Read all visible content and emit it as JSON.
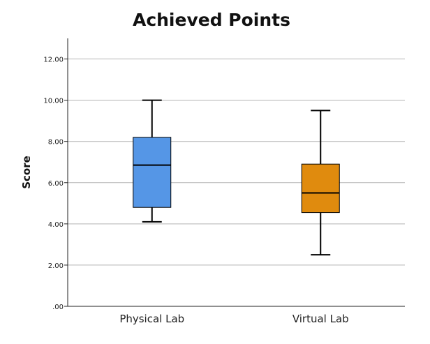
{
  "chart_data": {
    "type": "boxplot",
    "title": "Achieved Points",
    "xlabel": "",
    "ylabel": "Score",
    "ylim": [
      0,
      13.0
    ],
    "yticks": [
      0,
      2,
      4,
      6,
      8,
      10,
      12
    ],
    "ytick_labels": [
      ".00",
      "2.00",
      "4.00",
      "6.00",
      "8.00",
      "10.00",
      "12.00"
    ],
    "grid": true,
    "categories": [
      "Physical Lab",
      "Virtual Lab"
    ],
    "boxes": [
      {
        "category": "Physical Lab",
        "min": 4.1,
        "q1": 4.8,
        "median": 6.85,
        "q3": 8.2,
        "max": 10.0,
        "color": "#5596e6"
      },
      {
        "category": "Virtual Lab",
        "min": 2.5,
        "q1": 4.55,
        "median": 5.5,
        "q3": 6.9,
        "max": 9.5,
        "color": "#e08b0e"
      }
    ]
  }
}
